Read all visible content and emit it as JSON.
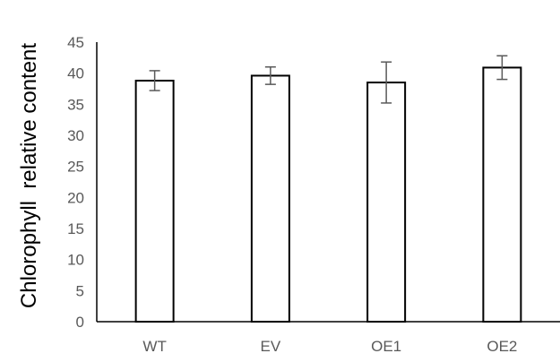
{
  "chart_data": {
    "type": "bar",
    "title": "",
    "xlabel": "",
    "ylabel": "Chlorophyll  relative content",
    "categories": [
      "WT",
      "EV",
      "OE1",
      "OE2"
    ],
    "values": [
      38.8,
      39.6,
      38.5,
      40.9
    ],
    "errors": [
      1.6,
      1.4,
      3.3,
      1.9
    ],
    "ylim": [
      0,
      45
    ],
    "yticks": [
      0,
      5,
      10,
      15,
      20,
      25,
      30,
      35,
      40,
      45
    ],
    "grid": false,
    "legend": "none",
    "colors": {
      "bar_fill": "#ffffff",
      "bar_stroke": "#000000",
      "axis": "#000000",
      "error_bar": "#595959",
      "tick_text": "#595959"
    }
  }
}
